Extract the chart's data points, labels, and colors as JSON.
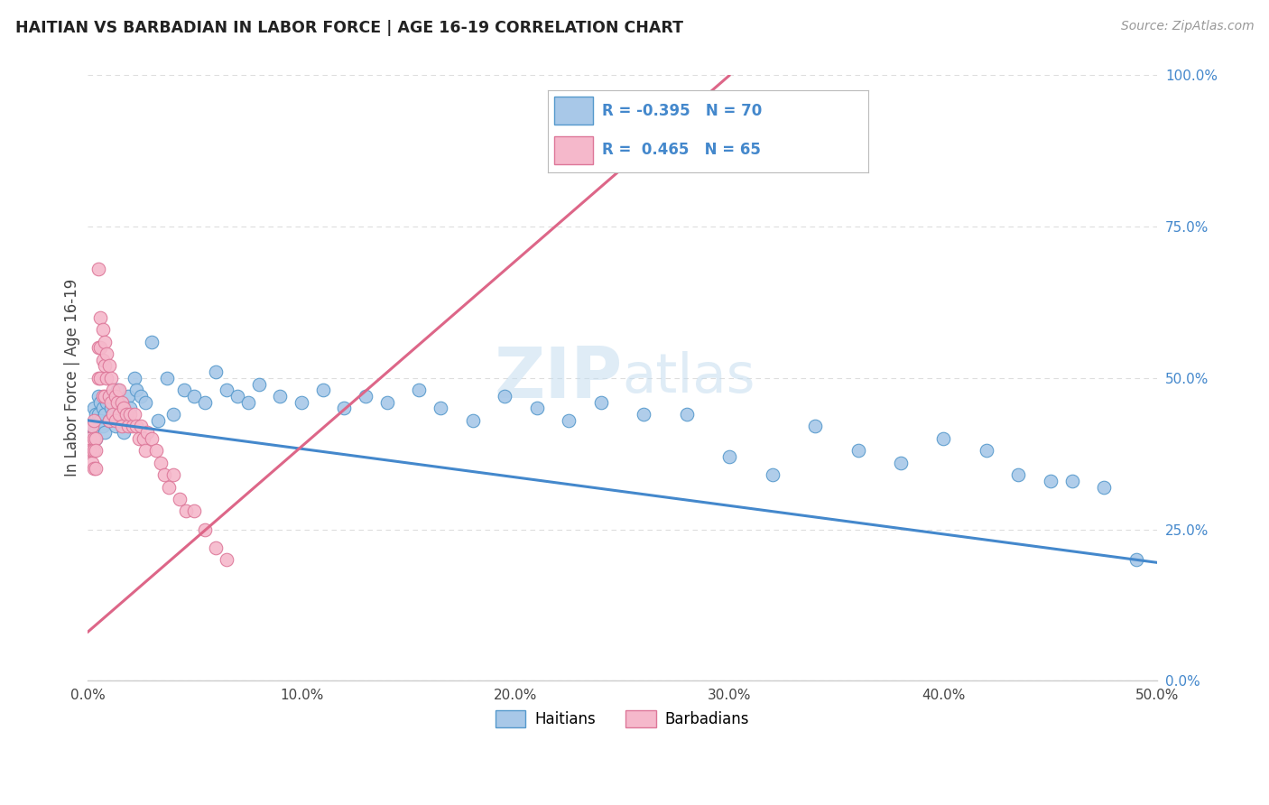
{
  "title": "HAITIAN VS BARBADIAN IN LABOR FORCE | AGE 16-19 CORRELATION CHART",
  "source": "Source: ZipAtlas.com",
  "ylabel": "In Labor Force | Age 16-19",
  "xlim": [
    0.0,
    0.5
  ],
  "ylim": [
    0.0,
    1.0
  ],
  "xtick_vals": [
    0.0,
    0.1,
    0.2,
    0.3,
    0.4,
    0.5
  ],
  "xticklabels": [
    "0.0%",
    "10.0%",
    "20.0%",
    "30.0%",
    "40.0%",
    "50.0%"
  ],
  "ytick_vals": [
    0.0,
    0.25,
    0.5,
    0.75,
    1.0
  ],
  "yticklabels": [
    "0.0%",
    "25.0%",
    "50.0%",
    "75.0%",
    "100.0%"
  ],
  "watermark_zip": "ZIP",
  "watermark_atlas": "atlas",
  "legend_line1": "R = -0.395   N = 70",
  "legend_line2": "R =  0.465   N = 65",
  "blue_fill": "#a8c8e8",
  "pink_fill": "#f5b8cb",
  "blue_edge": "#5599cc",
  "pink_edge": "#dd7799",
  "blue_line": "#4488cc",
  "pink_line": "#dd6688",
  "title_color": "#222222",
  "source_color": "#999999",
  "grid_color": "#dddddd",
  "axis_color": "#cccccc",
  "legend_text_color": "#4488cc",
  "ylabel_color": "#444444",
  "xtick_color": "#444444",
  "ytick_color": "#4488cc",
  "blue_line_x0": 0.0,
  "blue_line_x1": 0.5,
  "blue_line_y0": 0.43,
  "blue_line_y1": 0.195,
  "pink_line_x0": 0.0,
  "pink_line_x1": 0.3,
  "pink_line_y0": 0.08,
  "pink_line_y1": 1.0,
  "haitian_x": [
    0.002,
    0.003,
    0.003,
    0.004,
    0.004,
    0.005,
    0.005,
    0.005,
    0.006,
    0.006,
    0.007,
    0.007,
    0.008,
    0.008,
    0.009,
    0.01,
    0.01,
    0.011,
    0.012,
    0.013,
    0.014,
    0.015,
    0.016,
    0.017,
    0.018,
    0.019,
    0.02,
    0.022,
    0.023,
    0.025,
    0.027,
    0.03,
    0.033,
    0.037,
    0.04,
    0.045,
    0.05,
    0.055,
    0.06,
    0.065,
    0.07,
    0.075,
    0.08,
    0.09,
    0.1,
    0.11,
    0.12,
    0.13,
    0.14,
    0.155,
    0.165,
    0.18,
    0.195,
    0.21,
    0.225,
    0.24,
    0.26,
    0.28,
    0.3,
    0.32,
    0.34,
    0.36,
    0.38,
    0.4,
    0.42,
    0.435,
    0.45,
    0.46,
    0.475,
    0.49
  ],
  "haitian_y": [
    0.42,
    0.45,
    0.41,
    0.44,
    0.4,
    0.43,
    0.47,
    0.44,
    0.46,
    0.43,
    0.45,
    0.42,
    0.44,
    0.41,
    0.46,
    0.43,
    0.47,
    0.45,
    0.44,
    0.42,
    0.48,
    0.46,
    0.44,
    0.41,
    0.43,
    0.47,
    0.45,
    0.5,
    0.48,
    0.47,
    0.46,
    0.56,
    0.43,
    0.5,
    0.44,
    0.48,
    0.47,
    0.46,
    0.51,
    0.48,
    0.47,
    0.46,
    0.49,
    0.47,
    0.46,
    0.48,
    0.45,
    0.47,
    0.46,
    0.48,
    0.45,
    0.43,
    0.47,
    0.45,
    0.43,
    0.46,
    0.44,
    0.44,
    0.37,
    0.34,
    0.42,
    0.38,
    0.36,
    0.4,
    0.38,
    0.34,
    0.33,
    0.33,
    0.32,
    0.2
  ],
  "barbadian_x": [
    0.001,
    0.001,
    0.002,
    0.002,
    0.002,
    0.003,
    0.003,
    0.003,
    0.003,
    0.004,
    0.004,
    0.004,
    0.005,
    0.005,
    0.005,
    0.006,
    0.006,
    0.006,
    0.007,
    0.007,
    0.007,
    0.008,
    0.008,
    0.008,
    0.009,
    0.009,
    0.01,
    0.01,
    0.01,
    0.011,
    0.011,
    0.012,
    0.012,
    0.013,
    0.013,
    0.014,
    0.015,
    0.015,
    0.016,
    0.016,
    0.017,
    0.018,
    0.019,
    0.02,
    0.021,
    0.022,
    0.023,
    0.024,
    0.025,
    0.026,
    0.027,
    0.028,
    0.03,
    0.032,
    0.034,
    0.036,
    0.038,
    0.04,
    0.043,
    0.046,
    0.05,
    0.055,
    0.06,
    0.065,
    0.28
  ],
  "barbadian_y": [
    0.4,
    0.38,
    0.38,
    0.42,
    0.36,
    0.43,
    0.4,
    0.38,
    0.35,
    0.4,
    0.38,
    0.35,
    0.68,
    0.55,
    0.5,
    0.6,
    0.55,
    0.5,
    0.58,
    0.53,
    0.47,
    0.56,
    0.52,
    0.47,
    0.54,
    0.5,
    0.52,
    0.47,
    0.43,
    0.5,
    0.46,
    0.48,
    0.44,
    0.47,
    0.43,
    0.46,
    0.48,
    0.44,
    0.46,
    0.42,
    0.45,
    0.44,
    0.42,
    0.44,
    0.42,
    0.44,
    0.42,
    0.4,
    0.42,
    0.4,
    0.38,
    0.41,
    0.4,
    0.38,
    0.36,
    0.34,
    0.32,
    0.34,
    0.3,
    0.28,
    0.28,
    0.25,
    0.22,
    0.2,
    0.95
  ]
}
